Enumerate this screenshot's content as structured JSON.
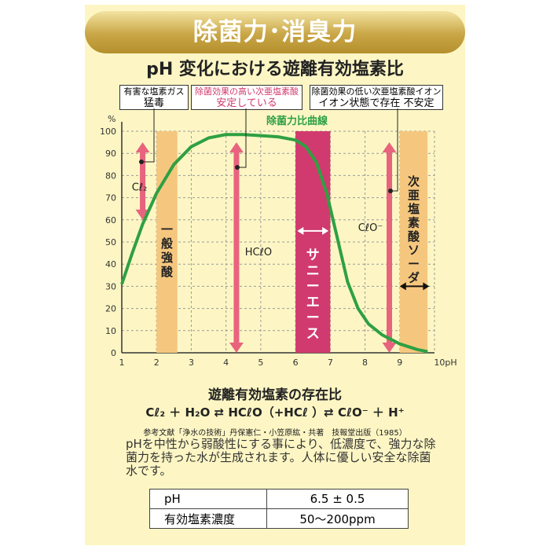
{
  "banner": {
    "title": "除菌力･消臭力"
  },
  "chart_title": "pH 変化における遊離有効塩素比",
  "callouts": [
    {
      "line1": "有害な塩素ガス",
      "line2": "猛毒"
    },
    {
      "line1": "除菌効果の高い次亜塩素酸",
      "line2": "安定している"
    },
    {
      "line1": "除菌効果の低い次亜塩素酸イオン",
      "line2": "イオン状態で存在 不安定"
    }
  ],
  "chart_data": {
    "type": "line",
    "title": "pH 変化における遊離有効塩素比",
    "xlabel": "pH",
    "ylabel": "%",
    "xlim": [
      1,
      10
    ],
    "ylim": [
      0,
      100
    ],
    "x_ticks": [
      "1",
      "2",
      "3",
      "4",
      "5",
      "6",
      "7",
      "8",
      "9",
      "10pH"
    ],
    "y_ticks": [
      "0",
      "10",
      "20",
      "30",
      "40",
      "50",
      "60",
      "70",
      "80",
      "90",
      "100"
    ],
    "grid": true,
    "series": [
      {
        "name": "除菌力比曲線",
        "color": "#2ea043",
        "x": [
          1.0,
          1.3,
          1.6,
          2.0,
          2.5,
          3.0,
          3.5,
          4.0,
          4.5,
          5.0,
          5.5,
          6.0,
          6.3,
          6.6,
          6.9,
          7.2,
          7.5,
          7.8,
          8.1,
          8.5,
          9.0,
          9.5,
          9.8
        ],
        "y": [
          31,
          45,
          58,
          72,
          85,
          93,
          97,
          98.5,
          98.5,
          98,
          97.5,
          96,
          93,
          86,
          72,
          52,
          32,
          20,
          13,
          8,
          4,
          1.5,
          0.5
        ]
      }
    ],
    "bands": [
      {
        "label": "一般強酸",
        "x_from": 2.0,
        "x_to": 2.6,
        "color": "#f5c77e"
      },
      {
        "label": "サニーエース",
        "x_from": 6.0,
        "x_to": 7.0,
        "color": "#d13a6e"
      },
      {
        "label": "次亜塩素酸ソーダ",
        "x_from": 9.0,
        "x_to": 9.8,
        "color": "#f5c77e"
      }
    ],
    "ranges": [
      {
        "label": "Cℓ₂",
        "x": 1.6,
        "y_from": 60,
        "y_to": 95,
        "color": "#e8637e"
      },
      {
        "label": "HCℓO",
        "x": 4.3,
        "y_from": 0,
        "y_to": 95,
        "color": "#e8637e"
      },
      {
        "label": "CℓO⁻",
        "x": 8.7,
        "y_from": 0,
        "y_to": 95,
        "color": "#e8637e"
      }
    ]
  },
  "section": {
    "title": "遊離有効塩素の存在比",
    "formula": "Cℓ₂ ＋ H₂O ⇄ HCℓO（+HCℓ ）⇄ CℓO⁻ ＋ H⁺",
    "reference": "参考文献「浄水の技術」丹保憲仁・小笠原紘・共著　技報堂出版（1985）"
  },
  "description": "pHを中性から弱酸性にする事により、低濃度で、強力な除菌力を持った水が生成されます。人体に優しい安全な除菌水です。",
  "spec_table": [
    {
      "key": "pH",
      "value": "6.5 ± 0.5"
    },
    {
      "key": "有効塩素濃度",
      "value": "50〜200ppm"
    }
  ]
}
